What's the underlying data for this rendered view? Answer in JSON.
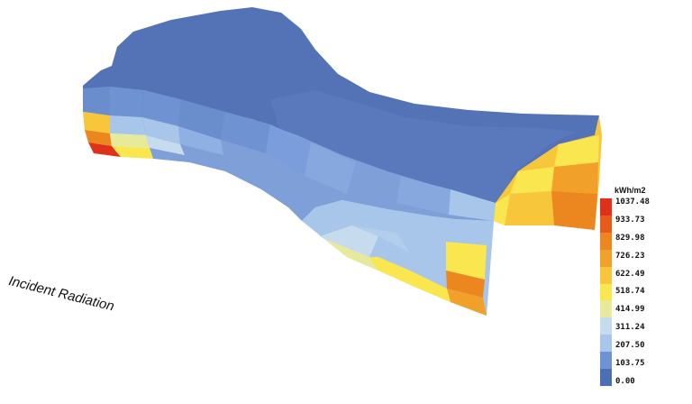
{
  "caption": "Incident Radiation",
  "legend": {
    "unit": "kWh/m2",
    "ticks": [
      "0.00",
      "103.75",
      "207.50",
      "311.24",
      "414.99",
      "518.74",
      "622.49",
      "726.23",
      "829.98",
      "933.73",
      "1037.48"
    ],
    "colors": [
      "#4b6eb4",
      "#6f93d2",
      "#a7c6ea",
      "#c7dbef",
      "#e6ea9a",
      "#fae64e",
      "#f7c63a",
      "#f1a12a",
      "#ec861f",
      "#e85a1a",
      "#e0301a"
    ]
  }
}
